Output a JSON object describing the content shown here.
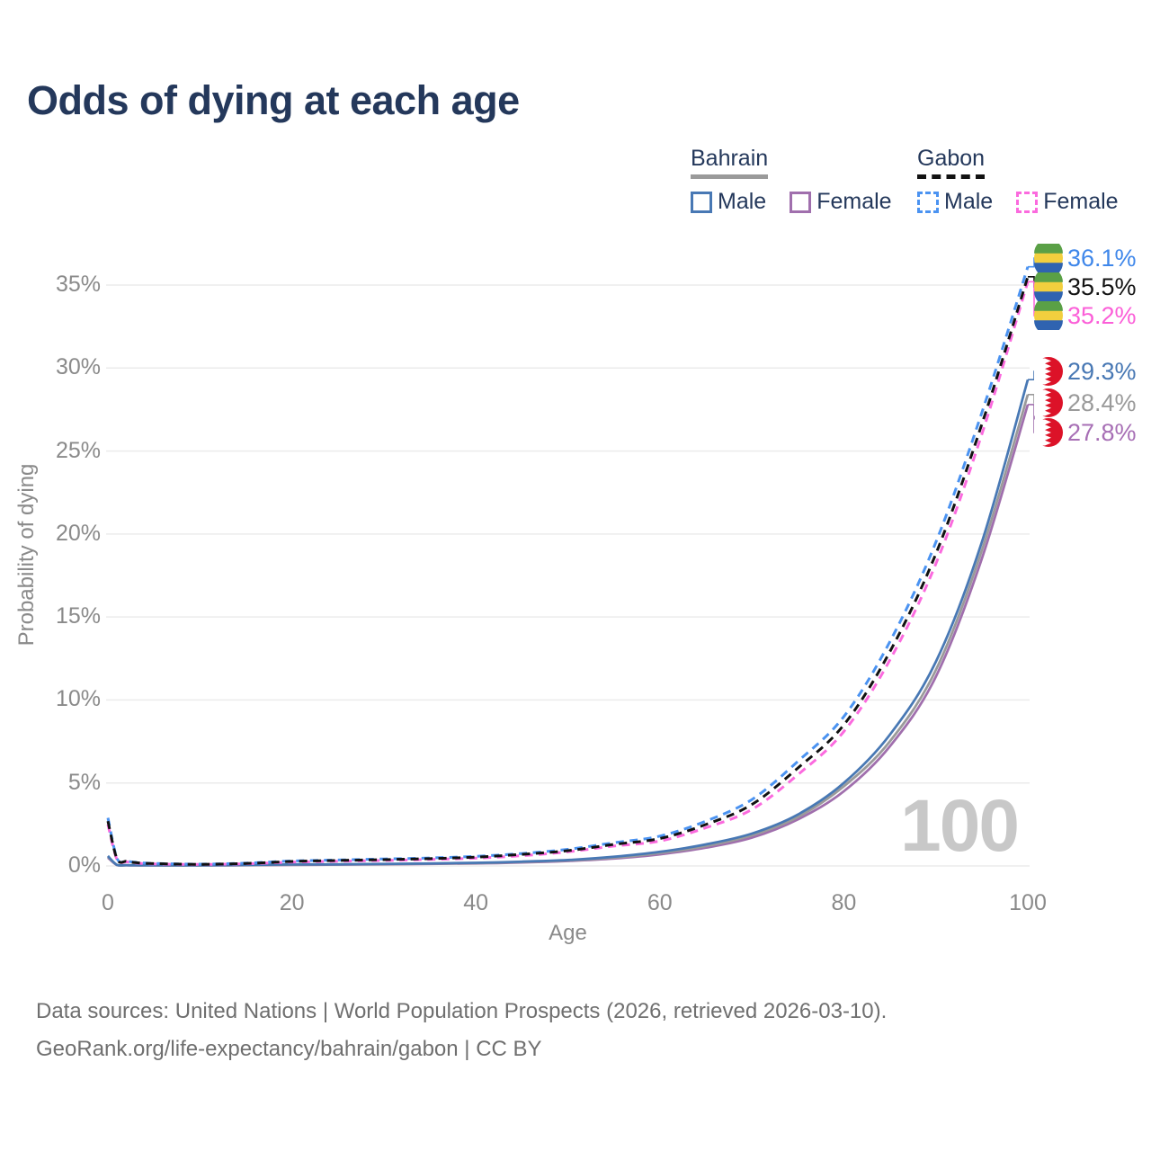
{
  "title": "Odds of dying at each age",
  "legend": {
    "groups": [
      {
        "country": "Bahrain",
        "style": "solid",
        "items": [
          {
            "label": "Male",
            "color": "#4878b4"
          },
          {
            "label": "Female",
            "color": "#a06fad"
          }
        ]
      },
      {
        "country": "Gabon",
        "style": "dashed",
        "items": [
          {
            "label": "Male",
            "color": "#4b93f1"
          },
          {
            "label": "Female",
            "color": "#fb6ade"
          }
        ]
      }
    ]
  },
  "watermark_age": "100",
  "footer": {
    "line1": "Data sources: United Nations | World Population Prospects (2026, retrieved 2026-03-10).",
    "line2": "GeoRank.org/life-expectancy/bahrain/gabon | CC BY"
  },
  "flags": {
    "gabon": {
      "green": "#5aa046",
      "yellow": "#f2cf3e",
      "blue": "#2f63b0"
    },
    "bahrain": {
      "red": "#dc1228",
      "white": "#ffffff"
    }
  },
  "chart_data": {
    "type": "line",
    "title": "Odds of dying at each age",
    "xlabel": "Age",
    "ylabel": "Probability of dying",
    "xlim": [
      0,
      100
    ],
    "ylim": [
      0,
      37.5
    ],
    "x_ticks": [
      0,
      20,
      40,
      60,
      80,
      100
    ],
    "y_ticks": [
      0,
      5,
      10,
      15,
      20,
      25,
      30,
      35
    ],
    "y_tick_suffix": "%",
    "grid": "horizontal",
    "legend_position": "top-right",
    "ages": [
      0,
      1,
      2,
      3,
      5,
      10,
      15,
      20,
      25,
      30,
      35,
      40,
      45,
      50,
      55,
      60,
      65,
      70,
      75,
      80,
      85,
      90,
      95,
      100
    ],
    "series": [
      {
        "name": "Gabon Male",
        "country": "Gabon",
        "sex": "Male",
        "style": "dashed",
        "color": "#4b93f1",
        "label_color": "#3f87ea",
        "end_label": "36.1%",
        "end_value": 36.1,
        "values": [
          2.9,
          0.45,
          0.3,
          0.22,
          0.15,
          0.11,
          0.17,
          0.3,
          0.36,
          0.42,
          0.48,
          0.58,
          0.75,
          1.0,
          1.4,
          1.8,
          2.7,
          4.0,
          6.3,
          9.0,
          13.5,
          19.5,
          27.3,
          36.1
        ]
      },
      {
        "name": "Gabon",
        "country": "Gabon",
        "sex": "Both sexes",
        "style": "dashed",
        "color": "#121212",
        "label_color": "#141414",
        "end_label": "35.5%",
        "end_value": 35.5,
        "values": [
          2.7,
          0.42,
          0.28,
          0.2,
          0.14,
          0.1,
          0.15,
          0.27,
          0.33,
          0.38,
          0.44,
          0.53,
          0.7,
          0.92,
          1.3,
          1.65,
          2.5,
          3.7,
          5.9,
          8.5,
          12.9,
          18.8,
          26.6,
          35.5
        ]
      },
      {
        "name": "Gabon Female",
        "country": "Gabon",
        "sex": "Female",
        "style": "dashed",
        "color": "#fb6ade",
        "label_color": "#fb5fd8",
        "end_label": "35.2%",
        "end_value": 35.2,
        "values": [
          2.5,
          0.38,
          0.25,
          0.18,
          0.12,
          0.09,
          0.13,
          0.23,
          0.28,
          0.33,
          0.39,
          0.47,
          0.62,
          0.85,
          1.2,
          1.5,
          2.3,
          3.4,
          5.5,
          8.1,
          12.4,
          18.2,
          26.0,
          35.2
        ]
      },
      {
        "name": "Bahrain Male",
        "country": "Bahrain",
        "sex": "Male",
        "style": "solid",
        "color": "#4878b4",
        "label_color": "#4878b4",
        "end_label": "29.3%",
        "end_value": 29.3,
        "values": [
          0.6,
          0.06,
          0.05,
          0.04,
          0.04,
          0.04,
          0.06,
          0.09,
          0.1,
          0.12,
          0.15,
          0.19,
          0.26,
          0.36,
          0.55,
          0.85,
          1.3,
          1.95,
          3.1,
          5.0,
          7.9,
          12.3,
          19.5,
          29.3
        ]
      },
      {
        "name": "Bahrain",
        "country": "Bahrain",
        "sex": "Both sexes",
        "style": "solid",
        "color": "#9a9a9a",
        "label_color": "#9a9a9a",
        "end_label": "28.4%",
        "end_value": 28.4,
        "values": [
          0.55,
          0.06,
          0.04,
          0.04,
          0.03,
          0.03,
          0.05,
          0.08,
          0.09,
          0.11,
          0.14,
          0.17,
          0.24,
          0.33,
          0.5,
          0.78,
          1.2,
          1.85,
          2.95,
          4.8,
          7.5,
          11.8,
          19.0,
          28.4
        ]
      },
      {
        "name": "Bahrain Female",
        "country": "Bahrain",
        "sex": "Female",
        "style": "solid",
        "color": "#a06fad",
        "label_color": "#a76fb5",
        "end_label": "27.8%",
        "end_value": 27.8,
        "values": [
          0.5,
          0.05,
          0.04,
          0.03,
          0.03,
          0.03,
          0.04,
          0.06,
          0.08,
          0.1,
          0.12,
          0.15,
          0.21,
          0.3,
          0.45,
          0.7,
          1.1,
          1.7,
          2.8,
          4.5,
          7.2,
          11.4,
          18.5,
          27.8
        ]
      }
    ]
  }
}
